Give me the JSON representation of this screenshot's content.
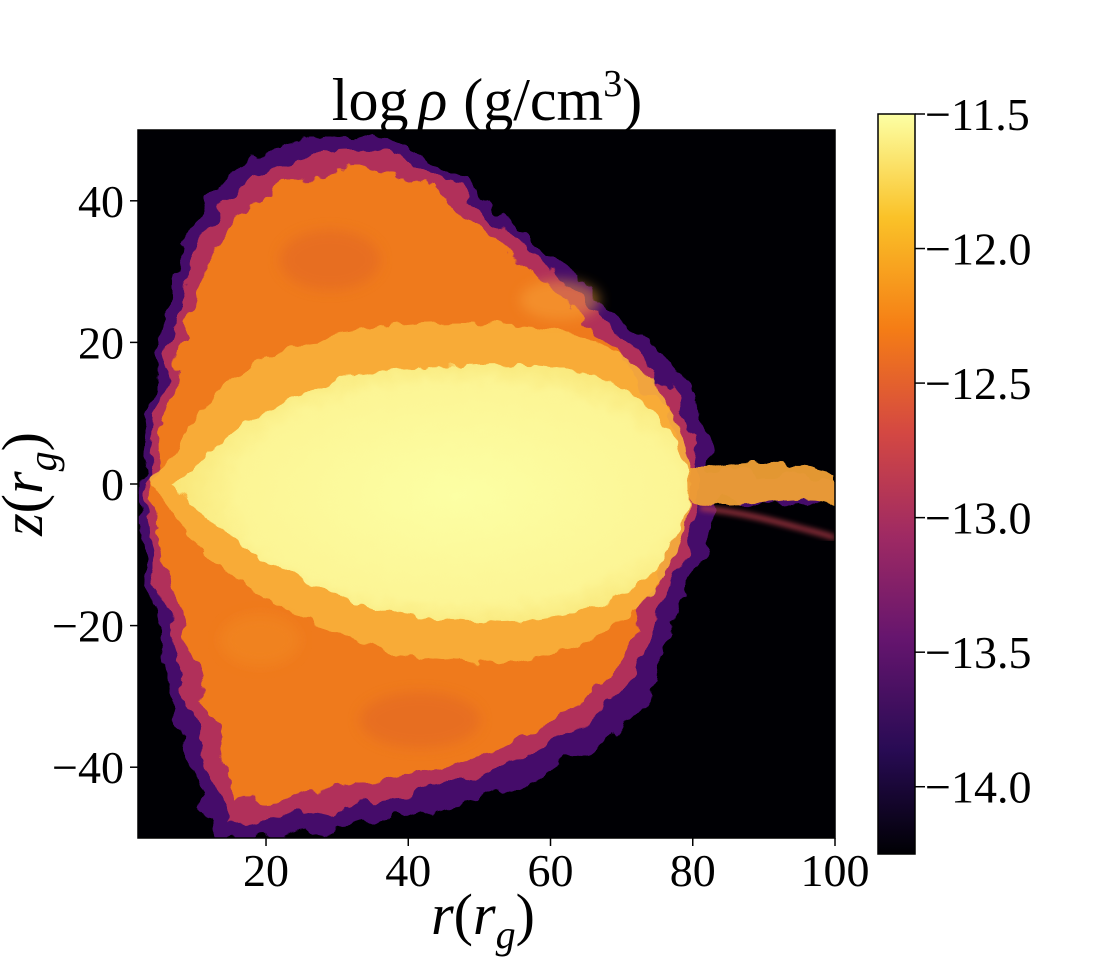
{
  "chart_data": {
    "type": "heatmap",
    "title": "log ρ (g/cm³)",
    "title_parts": {
      "func": "log",
      "symbol": "ρ",
      "unit_open": "(g/cm",
      "unit_exp": "3",
      "unit_close": ")"
    },
    "xlabel": "r(r_g)",
    "xlabel_parts": {
      "main": "r",
      "open": "(",
      "sub_main": "r",
      "sub": "g",
      "close": ")"
    },
    "ylabel": "z(r_g)",
    "ylabel_parts": {
      "main": "z",
      "open": "(",
      "sub_main": "r",
      "sub": "g",
      "close": ")"
    },
    "xlim": [
      2,
      100
    ],
    "ylim": [
      -50,
      50
    ],
    "xticks": [
      20,
      40,
      60,
      80,
      100
    ],
    "xtick_labels": [
      "20",
      "40",
      "60",
      "80",
      "100"
    ],
    "yticks": [
      -40,
      -20,
      0,
      20,
      40
    ],
    "ytick_labels": [
      "−40",
      "−20",
      "0",
      "20",
      "40"
    ],
    "colorbar": {
      "range": [
        -14.25,
        -11.5
      ],
      "ticks": [
        -11.5,
        -12.0,
        -12.5,
        -13.0,
        -13.5,
        -14.0
      ],
      "tick_labels": [
        "−11.5",
        "−12.0",
        "−12.5",
        "−13.0",
        "−13.5",
        "−14.0"
      ],
      "colormap": "inferno",
      "colors": [
        "#000004",
        "#280b54",
        "#65156e",
        "#9f2a63",
        "#d44842",
        "#f57d15",
        "#fac228",
        "#fcffa4"
      ]
    },
    "background_color": "#000004",
    "grid": false
  }
}
